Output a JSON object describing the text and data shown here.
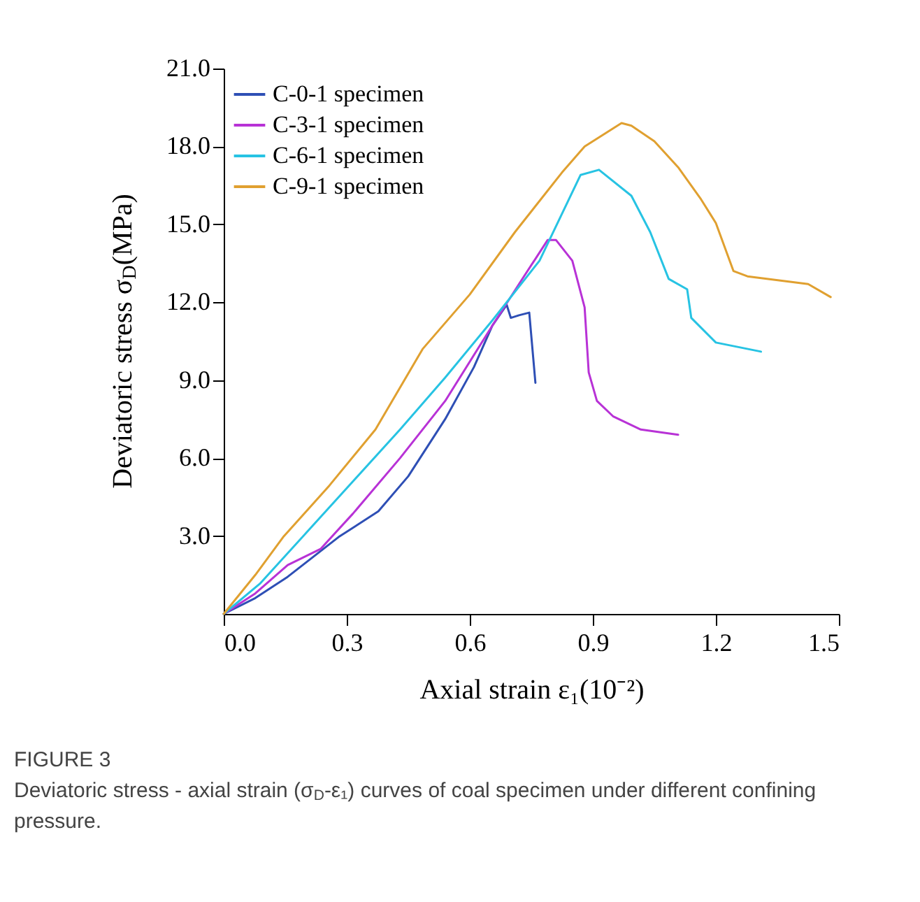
{
  "chart_data": {
    "type": "line",
    "xlabel": "Axial strain  ε₁(10⁻²)",
    "ylabel": "Deviatoric stress σ$_{D}$(MPa)",
    "annotations": [
      "FIGURE 3",
      "Deviatoric stress - axial strain (σ$_{D}$-ε₁) curves of coal specimen under different confining pressure."
    ],
    "xlim": [
      0,
      1.5
    ],
    "xticks": [
      {
        "value": 0,
        "label": "0.0"
      },
      {
        "value": 0.3,
        "label": "0.3"
      },
      {
        "value": 0.6,
        "label": "0.6"
      },
      {
        "value": 0.9,
        "label": "0.9"
      },
      {
        "value": 1.2,
        "label": "1.2"
      },
      {
        "value": 1.5,
        "label": "1.5"
      }
    ],
    "ylim": [
      0,
      21
    ],
    "yticks": [
      {
        "value": 3,
        "label": "3.0"
      },
      {
        "value": 6,
        "label": "6.0"
      },
      {
        "value": 9,
        "label": "9.0"
      },
      {
        "value": 12,
        "label": "12.0"
      },
      {
        "value": 15,
        "label": "15.0"
      },
      {
        "value": 18,
        "label": "18.0"
      },
      {
        "value": 21,
        "label": "21.0"
      }
    ],
    "grid": false,
    "legend": "top left",
    "line_style": "solid",
    "series": [
      {
        "name": "C-0-1 specimen",
        "color": "#2e4fb5",
        "x": [
          0,
          0.077,
          0.156,
          0.28,
          0.377,
          0.45,
          0.54,
          0.61,
          0.655,
          0.69,
          0.7,
          0.72,
          0.745,
          0.76
        ],
        "values": [
          0,
          0.61,
          1.43,
          2.96,
          3.95,
          5.3,
          7.5,
          9.5,
          11.1,
          11.9,
          11.4,
          11.5,
          11.6,
          8.9
        ]
      },
      {
        "name": "C-3-1 specimen",
        "color": "#b832d6",
        "x": [
          0,
          0.077,
          0.156,
          0.236,
          0.315,
          0.43,
          0.54,
          0.655,
          0.72,
          0.79,
          0.81,
          0.85,
          0.88,
          0.89,
          0.91,
          0.95,
          1.017,
          1.108
        ],
        "values": [
          0,
          0.79,
          1.88,
          2.5,
          3.86,
          6.0,
          8.2,
          11.1,
          12.7,
          14.4,
          14.4,
          13.6,
          11.8,
          9.3,
          8.2,
          7.6,
          7.1,
          6.9
        ]
      },
      {
        "name": "C-6-1 specimen",
        "color": "#27c3e3",
        "x": [
          0,
          0.088,
          0.2,
          0.315,
          0.43,
          0.54,
          0.655,
          0.77,
          0.87,
          0.915,
          0.994,
          1.04,
          1.085,
          1.13,
          1.14,
          1.2,
          1.31
        ],
        "values": [
          0,
          1.16,
          3.1,
          5.1,
          7.1,
          9.1,
          11.3,
          13.6,
          16.9,
          17.1,
          16.1,
          14.7,
          12.9,
          12.5,
          11.4,
          10.45,
          10.1
        ]
      },
      {
        "name": "C-9-1 specimen",
        "color": "#e0a030",
        "x": [
          0,
          0.077,
          0.145,
          0.258,
          0.37,
          0.485,
          0.6,
          0.71,
          0.825,
          0.88,
          0.97,
          0.994,
          1.05,
          1.108,
          1.164,
          1.2,
          1.243,
          1.277,
          1.425,
          1.48
        ],
        "values": [
          0,
          1.5,
          2.96,
          4.95,
          7.1,
          10.2,
          12.3,
          14.7,
          17.0,
          18.0,
          18.9,
          18.8,
          18.2,
          17.2,
          15.96,
          15.05,
          13.2,
          13.0,
          12.7,
          12.2
        ]
      }
    ]
  }
}
